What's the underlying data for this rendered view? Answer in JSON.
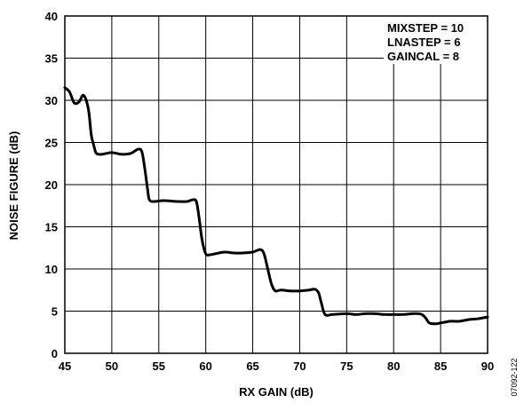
{
  "chart_data": {
    "type": "line",
    "xlabel": "RX GAIN (dB)",
    "ylabel": "NOISE FIGURE (dB)",
    "xlim": [
      45,
      90
    ],
    "ylim": [
      0,
      40
    ],
    "xticks": [
      "45",
      "50",
      "55",
      "60",
      "65",
      "70",
      "75",
      "80",
      "85",
      "90"
    ],
    "yticks": [
      "0",
      "5",
      "10",
      "15",
      "20",
      "25",
      "30",
      "35",
      "40"
    ],
    "grid": true,
    "annotations": [
      "MIXSTEP = 10",
      "LNASTEP = 6",
      "GAINCAL = 8"
    ],
    "figure_id": "07092-122",
    "series": [
      {
        "color": "#000000",
        "x": [
          45,
          45.5,
          46,
          46.5,
          47,
          47.5,
          47.8,
          48,
          48.3,
          48.6,
          49,
          50,
          51,
          52,
          52.8,
          53.2,
          53.5,
          53.8,
          54,
          54.5,
          55.5,
          57,
          58,
          58.6,
          59,
          59.3,
          59.6,
          60,
          60.5,
          61,
          62,
          63,
          64,
          65,
          65.8,
          66.2,
          66.6,
          67,
          67.4,
          68,
          69,
          70,
          71,
          71.6,
          72,
          72.3,
          72.7,
          73.5,
          75,
          76,
          77,
          78,
          79,
          80,
          81,
          82,
          82.6,
          83,
          83.4,
          83.8,
          84.5,
          85,
          85.5,
          86,
          87,
          88,
          89,
          90
        ],
        "y": [
          31.5,
          31,
          29.7,
          29.8,
          30.6,
          29,
          26,
          25,
          23.8,
          23.6,
          23.6,
          23.8,
          23.6,
          23.7,
          24.2,
          23.9,
          22,
          19.5,
          18.2,
          18,
          18.1,
          18,
          18,
          18.2,
          18,
          16,
          13.5,
          11.8,
          11.7,
          11.8,
          12,
          11.9,
          11.9,
          12,
          12.3,
          11.8,
          10,
          8.2,
          7.4,
          7.5,
          7.4,
          7.4,
          7.5,
          7.6,
          7.2,
          6,
          4.6,
          4.6,
          4.7,
          4.6,
          4.7,
          4.7,
          4.6,
          4.6,
          4.6,
          4.7,
          4.7,
          4.6,
          4.2,
          3.6,
          3.5,
          3.6,
          3.7,
          3.8,
          3.8,
          4,
          4.1,
          4.3
        ]
      }
    ]
  }
}
